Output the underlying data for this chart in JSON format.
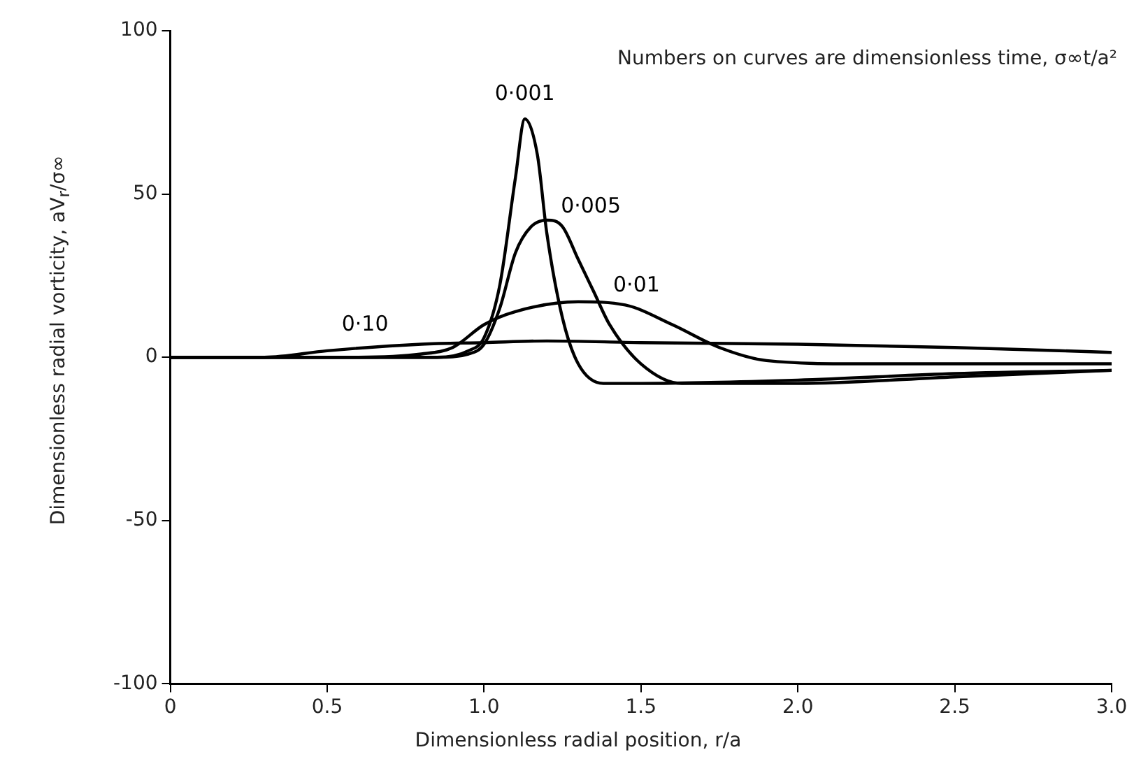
{
  "chart_data": {
    "type": "line",
    "xlabel": "Dimensionless radial position, r/a",
    "ylabel": "Dimensionless radial vorticity, aV$_{r}$/σ∞",
    "annotations": [
      "Numbers on curves are dimensionless time, σ∞t/a²"
    ],
    "xlim": [
      0,
      3
    ],
    "xticks": [
      0,
      0.5,
      {
        "value": 1,
        "label": "1.0"
      },
      1.5,
      {
        "value": 2,
        "label": "2.0"
      },
      2.5,
      {
        "value": 3,
        "label": "3.0"
      }
    ],
    "ylim": [
      -100,
      100
    ],
    "yticks": [
      -100,
      -50,
      0,
      50,
      100
    ],
    "grid": false,
    "legend": false,
    "marker": "none",
    "line_style": "solid",
    "series": [
      {
        "name": "0·001",
        "color": "#000000",
        "x": [
          0,
          0.85,
          0.95,
          1.0,
          1.05,
          1.1,
          1.13,
          1.17,
          1.2,
          1.25,
          1.3,
          1.38,
          1.5,
          2.0,
          2.5,
          3.0
        ],
        "values": [
          0,
          0,
          2,
          6,
          22,
          55,
          73,
          62,
          38,
          12,
          -2,
          -8,
          -8,
          -7,
          -5,
          -4
        ]
      },
      {
        "name": "0·005",
        "color": "#000000",
        "x": [
          0,
          0.85,
          0.95,
          1.0,
          1.05,
          1.1,
          1.15,
          1.2,
          1.25,
          1.3,
          1.35,
          1.4,
          1.5,
          1.63,
          2.0,
          2.5,
          3.0
        ],
        "values": [
          0,
          0,
          1,
          4,
          15,
          32,
          40,
          42,
          40,
          30,
          20,
          10,
          -2,
          -8,
          -8,
          -6,
          -4
        ]
      },
      {
        "name": "0·01",
        "color": "#000000",
        "x": [
          0,
          0.6,
          0.8,
          0.9,
          1.0,
          1.1,
          1.3,
          1.45,
          1.6,
          1.75,
          1.9,
          2.2,
          2.5,
          3.0
        ],
        "values": [
          0,
          0,
          1,
          3,
          10,
          14,
          17,
          16,
          10,
          3,
          -1,
          -2,
          -2,
          -2
        ]
      },
      {
        "name": "0·10",
        "color": "#000000",
        "x": [
          0,
          0.3,
          0.5,
          0.8,
          1.0,
          1.2,
          1.5,
          2.0,
          2.5,
          3.0
        ],
        "values": [
          0,
          0,
          2,
          4,
          4.5,
          5,
          4.5,
          4,
          3,
          1.5
        ]
      }
    ]
  }
}
